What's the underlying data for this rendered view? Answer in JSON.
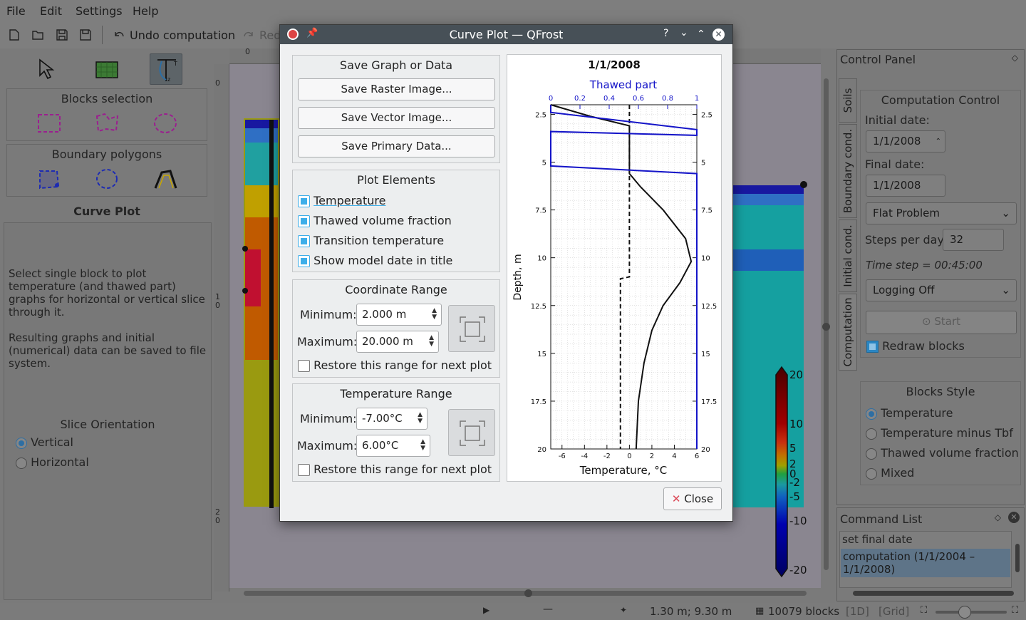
{
  "menu": [
    "File",
    "Edit",
    "Settings",
    "Help"
  ],
  "toolbar": {
    "undo_label": "Undo computation",
    "redo_label": "Red"
  },
  "left": {
    "blocks_selection": "Blocks selection",
    "boundary_polygons": "Boundary polygons",
    "curve_plot_title": "Curve Plot",
    "help_text_1": "Select single block to plot temperature (and thawed part) graphs for horizontal or vertical slice through it.",
    "help_text_2": "Resulting graphs and initial (numerical) data can be saved to file system.",
    "slice_orientation": "Slice Orientation",
    "vertical": "Vertical",
    "horizontal": "Horizontal"
  },
  "canvas": {
    "ruler_top_0": "0",
    "ruler_left_0": "0",
    "ruler_left_1": "1",
    "ruler_left_1b": "0",
    "ruler_left_2": "2",
    "ruler_left_2b": "0"
  },
  "colorbar": {
    "labels": [
      "20",
      "10",
      "5",
      "2",
      "0",
      "-2",
      "-5",
      "-10",
      "-20"
    ]
  },
  "dialog": {
    "title": "Curve Plot — QFrost",
    "save_group": "Save Graph or Data",
    "save_raster": "Save Raster Image...",
    "save_vector": "Save Vector Image...",
    "save_primary": "Save Primary Data...",
    "plot_elements": "Plot Elements",
    "elements": [
      "Temperature",
      "Thawed volume fraction",
      "Transition temperature",
      "Show model date in title"
    ],
    "coord_range": "Coordinate Range",
    "coord_min_label": "Minimum:",
    "coord_min": "2.000 m",
    "coord_max_label": "Maximum:",
    "coord_max": "20.000 m",
    "restore": "Restore this range for next plot",
    "temp_range": "Temperature Range",
    "temp_min_label": "Minimum:",
    "temp_min": "-7.00°C",
    "temp_max_label": "Maximum:",
    "temp_max": "6.00°C",
    "close": "Close"
  },
  "chart_data": {
    "type": "line",
    "title": "1/1/2008",
    "subtitle": "Thawed part",
    "xlabel": "Temperature, °C",
    "ylabel": "Depth, m",
    "xlim": [
      -7,
      6
    ],
    "ylim": [
      2,
      20
    ],
    "x_top_lim": [
      0,
      1
    ],
    "x_ticks": [
      "-6",
      "-4",
      "-2",
      "0",
      "2",
      "4",
      "6"
    ],
    "x_top_ticks": [
      "0",
      "0.2",
      "0.4",
      "0.6",
      "0.8",
      "1"
    ],
    "y_ticks": [
      "2.5",
      "5",
      "7.5",
      "10",
      "12.5",
      "15",
      "17.5",
      "20"
    ],
    "grid": true,
    "series": [
      {
        "kind": "temperature",
        "points": [
          [
            -7,
            2.0
          ],
          [
            -3.5,
            2.6
          ],
          [
            0,
            3.1
          ],
          [
            0,
            5.6
          ],
          [
            1,
            6.3
          ],
          [
            3,
            7.5
          ],
          [
            5,
            9.0
          ],
          [
            5.5,
            10.2
          ],
          [
            4.5,
            11.3
          ],
          [
            3,
            12.5
          ],
          [
            2,
            13.8
          ],
          [
            1.3,
            15.5
          ],
          [
            0.8,
            17.5
          ],
          [
            0.6,
            20
          ]
        ]
      },
      {
        "kind": "transition",
        "points": [
          [
            0,
            2.0
          ],
          [
            0,
            11.0
          ],
          [
            -0.8,
            11.1
          ],
          [
            -0.8,
            20
          ]
        ]
      },
      {
        "kind": "thawed",
        "points": [
          [
            0,
            2.0
          ],
          [
            0,
            2.4
          ],
          [
            1,
            3.3
          ],
          [
            1,
            3.6
          ],
          [
            0,
            3.4
          ],
          [
            0,
            5.2
          ],
          [
            1,
            5.6
          ],
          [
            1,
            20
          ]
        ]
      }
    ]
  },
  "control_panel": {
    "title": "Control Panel",
    "tabs": [
      "Soils",
      "Boundary cond.",
      "Initial cond.",
      "Computation"
    ],
    "computation_control": "Computation Control",
    "initial_date_label": "Initial date:",
    "initial_date": "1/1/2008",
    "final_date_label": "Final date:",
    "final_date": "1/1/2008",
    "problem": "Flat Problem",
    "steps_label": "Steps per day:",
    "steps": "32",
    "time_step": "Time step = 00:45:00",
    "logging": "Logging Off",
    "start": "Start",
    "redraw": "Redraw blocks",
    "blocks_style": "Blocks Style",
    "styles": [
      "Temperature",
      "Temperature minus Tbf",
      "Thawed volume fraction",
      "Mixed"
    ]
  },
  "command_list": {
    "title": "Command List",
    "items": [
      "set final date",
      "computation (1/1/2004 – 1/1/2008)"
    ]
  },
  "status": {
    "coords": "1.30 m; 9.30 m",
    "blocks": "10079 blocks",
    "one_d": "[1D]",
    "grid": "[Grid]"
  }
}
